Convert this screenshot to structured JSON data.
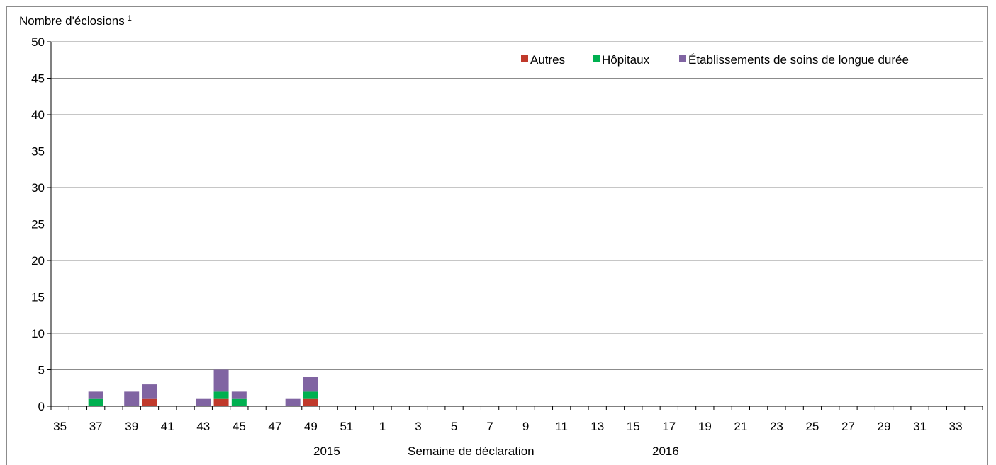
{
  "chart_data": {
    "type": "bar",
    "stacked": true,
    "title": "",
    "ylabel": "Nombre d'éclosions",
    "ylabel_superscript": "1",
    "xlabel": "Semaine de déclaration",
    "year_labels": [
      "2015",
      "2016"
    ],
    "ylim": [
      0,
      50
    ],
    "yticks": [
      0,
      5,
      10,
      15,
      20,
      25,
      30,
      35,
      40,
      45,
      50
    ],
    "grid": true,
    "legend_position": "top-right",
    "categories": [
      "35",
      "36",
      "37",
      "38",
      "39",
      "40",
      "41",
      "42",
      "43",
      "44",
      "45",
      "46",
      "47",
      "48",
      "49",
      "50",
      "51",
      "52",
      "1",
      "2",
      "3",
      "4",
      "5",
      "6",
      "7",
      "8",
      "9",
      "10",
      "11",
      "12",
      "13",
      "14",
      "15",
      "16",
      "17",
      "18",
      "19",
      "20",
      "21",
      "22",
      "23",
      "24",
      "25",
      "26",
      "27",
      "28",
      "29",
      "30",
      "31",
      "32",
      "33",
      "34"
    ],
    "tick_labels": [
      "35",
      "37",
      "39",
      "41",
      "43",
      "45",
      "47",
      "49",
      "51",
      "1",
      "3",
      "5",
      "7",
      "9",
      "11",
      "13",
      "15",
      "17",
      "19",
      "21",
      "23",
      "25",
      "27",
      "29",
      "31",
      "33"
    ],
    "series": [
      {
        "name": "Autres",
        "color": "#c0392b",
        "values": [
          0,
          0,
          0,
          0,
          0,
          1,
          0,
          0,
          0,
          1,
          0,
          0,
          0,
          0,
          1,
          0,
          0,
          0,
          0,
          0,
          0,
          0,
          0,
          0,
          0,
          0,
          0,
          0,
          0,
          0,
          0,
          0,
          0,
          0,
          0,
          0,
          0,
          0,
          0,
          0,
          0,
          0,
          0,
          0,
          0,
          0,
          0,
          0,
          0,
          0,
          0,
          0
        ]
      },
      {
        "name": "Hôpitaux",
        "color": "#00b050",
        "values": [
          0,
          0,
          1,
          0,
          0,
          0,
          0,
          0,
          0,
          1,
          1,
          0,
          0,
          0,
          1,
          0,
          0,
          0,
          0,
          0,
          0,
          0,
          0,
          0,
          0,
          0,
          0,
          0,
          0,
          0,
          0,
          0,
          0,
          0,
          0,
          0,
          0,
          0,
          0,
          0,
          0,
          0,
          0,
          0,
          0,
          0,
          0,
          0,
          0,
          0,
          0,
          0
        ]
      },
      {
        "name": "Établissements de soins de longue durée",
        "color": "#8064a2",
        "values": [
          0,
          0,
          1,
          0,
          2,
          2,
          0,
          0,
          1,
          3,
          1,
          0,
          0,
          1,
          2,
          0,
          0,
          0,
          0,
          0,
          0,
          0,
          0,
          0,
          0,
          0,
          0,
          0,
          0,
          0,
          0,
          0,
          0,
          0,
          0,
          0,
          0,
          0,
          0,
          0,
          0,
          0,
          0,
          0,
          0,
          0,
          0,
          0,
          0,
          0,
          0,
          0
        ]
      }
    ]
  }
}
